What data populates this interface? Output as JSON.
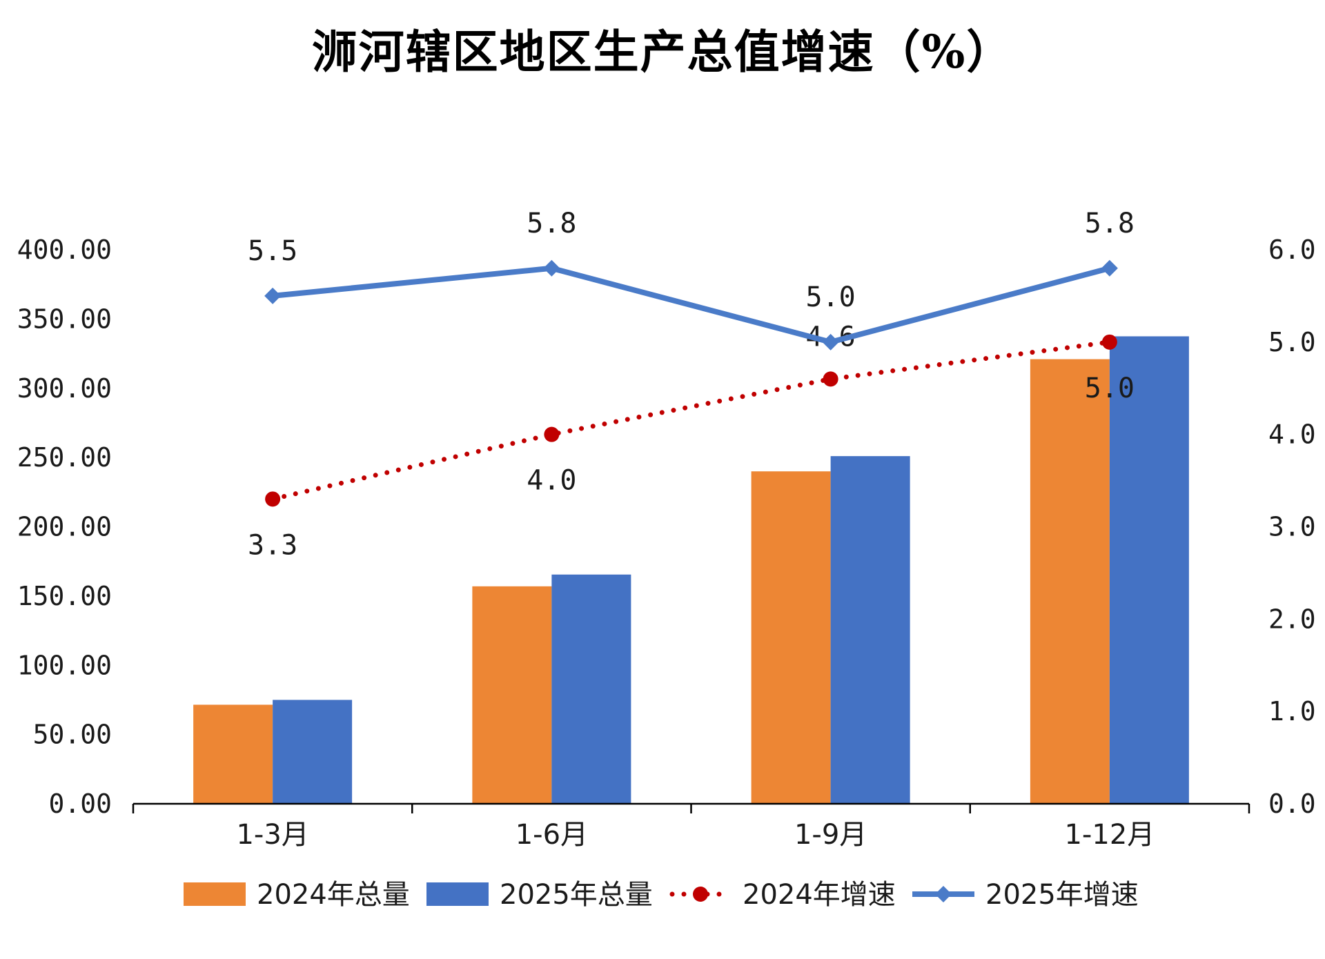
{
  "chart_data": {
    "type": "bar",
    "title": "浉河辖区地区生产总值增速（%）",
    "categories": [
      "1-3月",
      "1-6月",
      "1-9月",
      "1-12月"
    ],
    "y_left": {
      "min": 0,
      "max": 400,
      "step": 50,
      "tick_labels": [
        "0.00",
        "50.00",
        "100.00",
        "150.00",
        "200.00",
        "250.00",
        "300.00",
        "350.00",
        "400.00"
      ]
    },
    "y_right": {
      "min": 0,
      "max": 6,
      "step": 1,
      "tick_labels": [
        "0.0",
        "1.0",
        "2.0",
        "3.0",
        "4.0",
        "5.0",
        "6.0"
      ]
    },
    "series": [
      {
        "name": "2024年总量",
        "kind": "bar",
        "axis": "left",
        "color": "#ED8634",
        "values": [
          71.5,
          157,
          240,
          321
        ]
      },
      {
        "name": "2025年总量",
        "kind": "bar",
        "axis": "left",
        "color": "#4472C4",
        "values": [
          75,
          165.5,
          251,
          337.5
        ]
      },
      {
        "name": "2024年增速",
        "kind": "line",
        "style": "dotted",
        "marker": "circle",
        "axis": "right",
        "color": "#C00000",
        "values": [
          3.3,
          4.0,
          4.6,
          5.0
        ],
        "labels": [
          "3.3",
          "4.0",
          "4.6",
          "5.0"
        ]
      },
      {
        "name": "2025年增速",
        "kind": "line",
        "style": "solid",
        "marker": "diamond",
        "axis": "right",
        "color": "#4A7BC8",
        "values": [
          5.5,
          5.8,
          5.0,
          5.8
        ],
        "labels": [
          "5.5",
          "5.8",
          "5.0",
          "5.8"
        ]
      }
    ],
    "grid": false,
    "legend_position": "bottom"
  }
}
